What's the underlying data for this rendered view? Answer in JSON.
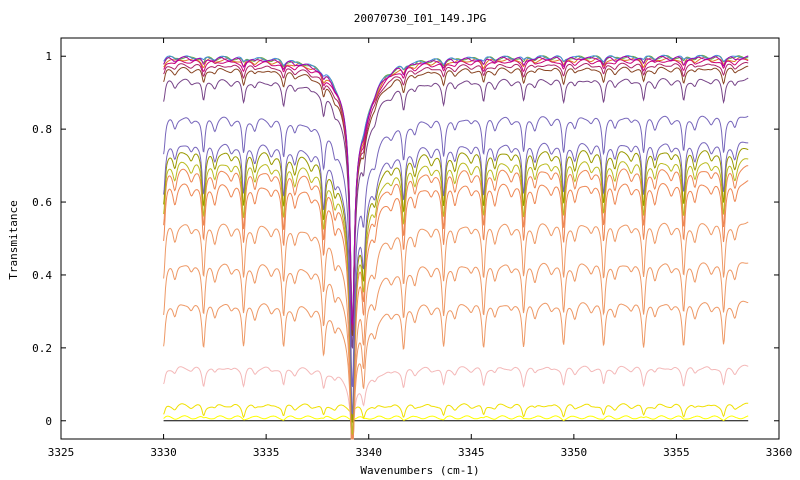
{
  "chart_data": {
    "type": "line",
    "title": "20070730_I01_149.JPG",
    "xlabel": "Wavenumbers (cm-1)",
    "ylabel": "Transmitance",
    "xlim": [
      3325,
      3360
    ],
    "ylim": [
      -0.05,
      1.05
    ],
    "xticks": [
      3325,
      3330,
      3335,
      3340,
      3345,
      3350,
      3355,
      3360
    ],
    "yticks": [
      0,
      0.2,
      0.4,
      0.6,
      0.8,
      1
    ],
    "ytick_labels": [
      "0",
      "0.2",
      "0.4",
      "0.6",
      "0.8",
      "1"
    ],
    "grid": false,
    "legend": "none",
    "x_range": [
      3330,
      3358.5
    ],
    "deep_line_x": 3339.2,
    "line_period_cm1": 1.95,
    "series": [
      {
        "color": "#000000",
        "baseline": 0.0,
        "depth": 0.0
      },
      {
        "color": "#ffff00",
        "baseline": 0.01,
        "depth": 0.005
      },
      {
        "color": "#f0e000",
        "baseline": 0.045,
        "depth": 0.03
      },
      {
        "color": "#f4b8b8",
        "baseline": 0.15,
        "depth": 0.05
      },
      {
        "color": "#ee9966",
        "baseline": 0.33,
        "depth": 0.12
      },
      {
        "color": "#ee9966",
        "baseline": 0.44,
        "depth": 0.14
      },
      {
        "color": "#ee9966",
        "baseline": 0.55,
        "depth": 0.15
      },
      {
        "color": "#ee8855",
        "baseline": 0.66,
        "depth": 0.16
      },
      {
        "color": "#ee8855",
        "baseline": 0.7,
        "depth": 0.16
      },
      {
        "color": "#bbbb22",
        "baseline": 0.72,
        "depth": 0.15
      },
      {
        "color": "#999900",
        "baseline": 0.75,
        "depth": 0.15
      },
      {
        "color": "#7766bb",
        "baseline": 0.77,
        "depth": 0.14
      },
      {
        "color": "#7766bb",
        "baseline": 0.84,
        "depth": 0.1
      },
      {
        "color": "#774488",
        "baseline": 0.94,
        "depth": 0.06
      },
      {
        "color": "#884422",
        "baseline": 0.97,
        "depth": 0.04
      },
      {
        "color": "#aa2266",
        "baseline": 0.98,
        "depth": 0.03
      },
      {
        "color": "#cc0077",
        "baseline": 0.99,
        "depth": 0.025
      },
      {
        "color": "#dd7722",
        "baseline": 0.995,
        "depth": 0.02
      },
      {
        "color": "#66aa44",
        "baseline": 1.0,
        "depth": 0.015
      },
      {
        "color": "#4488dd",
        "baseline": 1.0,
        "depth": 0.01
      },
      {
        "color": "#aa00aa",
        "baseline": 0.998,
        "depth": 0.02
      }
    ]
  }
}
